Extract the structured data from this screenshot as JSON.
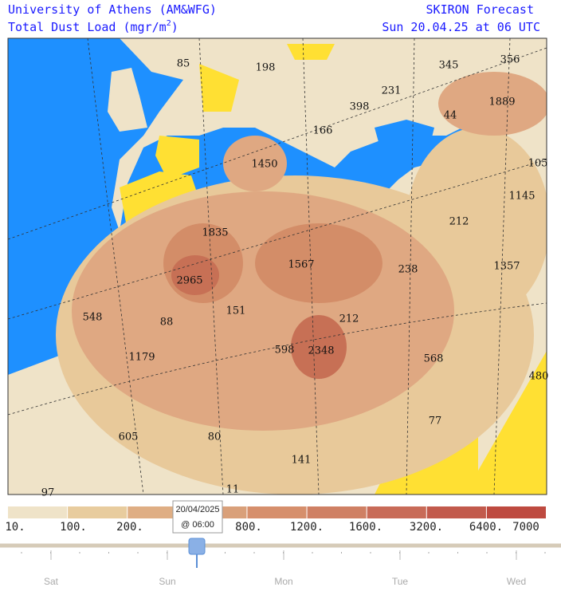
{
  "header": {
    "title_left": "University of Athens (AM&WFG)",
    "subtitle_left": "Total Dust Load (mgr/m",
    "subtitle_sup": "2",
    "subtitle_close": ")",
    "title_right": "SKIRON Forecast",
    "subtitle_right": "Sun 20.04.25 at 06 UTC"
  },
  "map": {
    "labels": [
      "85",
      "198",
      "345",
      "356",
      "231",
      "398",
      "1889",
      "44",
      "166",
      "1450",
      "105",
      "1145",
      "212",
      "1835",
      "1567",
      "238",
      "1357",
      "2965",
      "151",
      "548",
      "88",
      "212",
      "598",
      "2348",
      "568",
      "480",
      "1179",
      "77",
      "605",
      "80",
      "141",
      "97",
      "11"
    ]
  },
  "colorbar": {
    "labels": [
      "10.",
      "100.",
      "200.",
      "800.",
      "1200.",
      "1600.",
      "3200.",
      "6400.",
      "7000"
    ]
  },
  "slider": {
    "tooltip_date": "20/04/2025",
    "tooltip_time": "@ 06:00",
    "days": [
      "Sat",
      "Sun",
      "Mon",
      "Tue",
      "Wed"
    ]
  }
}
